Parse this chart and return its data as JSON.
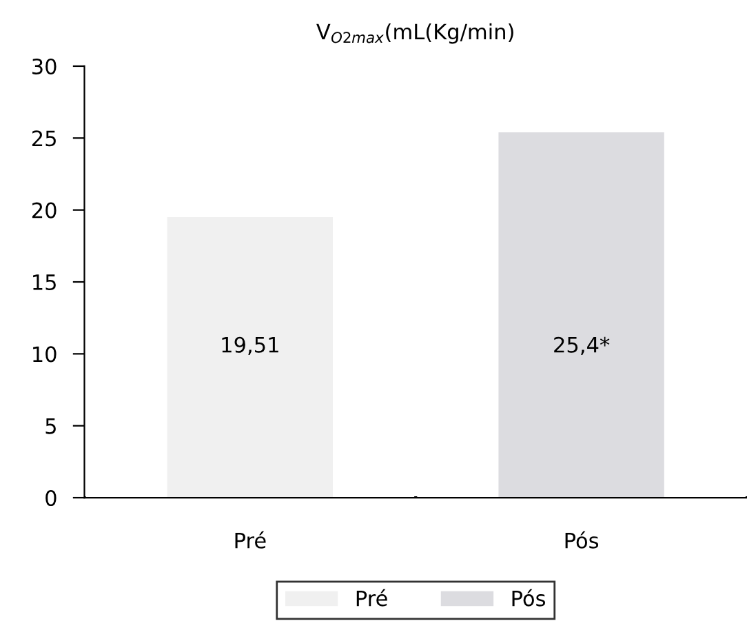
{
  "chart_data": {
    "type": "bar",
    "title": "V$_{O2max}$(mL(Kg/min)",
    "categories": [
      "Pré",
      "Pós"
    ],
    "series": [
      {
        "name": "Pré",
        "color": "#f0f0f0",
        "values": [
          19.51,
          null
        ],
        "value_labels": [
          "19,51",
          null
        ]
      },
      {
        "name": "Pós",
        "color": "#dcdce0",
        "values": [
          null,
          25.4
        ],
        "value_labels": [
          null,
          "25,4*"
        ]
      }
    ],
    "ylim": [
      0,
      30
    ],
    "yticks": [
      0,
      5,
      10,
      15,
      20,
      25,
      30
    ],
    "grid": false,
    "legend": "bottom"
  }
}
